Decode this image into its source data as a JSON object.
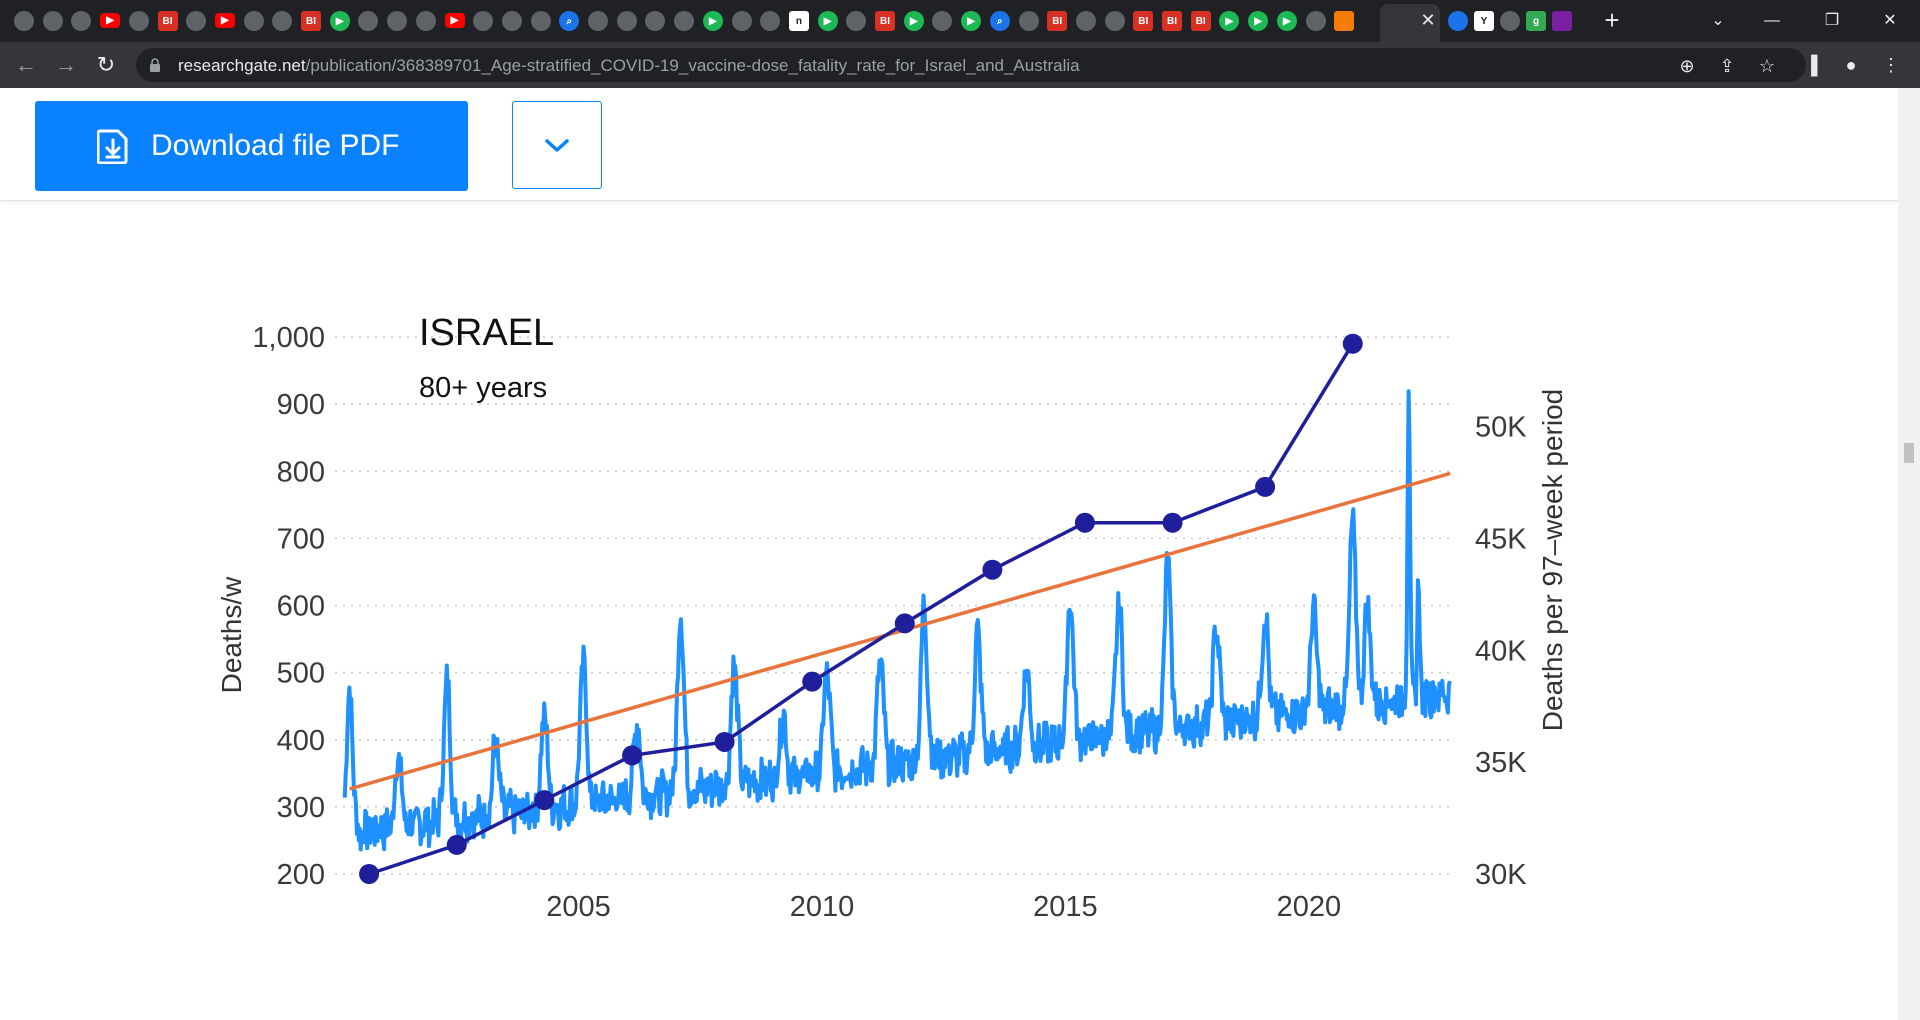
{
  "browser": {
    "url_host": "researchgate.net",
    "url_path": "/publication/368389701_Age-stratified_COVID-19_vaccine-dose_fatality_rate_for_Israel_and_Australia",
    "tab_icons": [
      "globe-icon",
      "globe-icon",
      "globe-icon",
      "youtube-icon",
      "globe-icon",
      "bi-icon",
      "globe-icon",
      "youtube-icon",
      "globe-icon",
      "globe-icon",
      "bi-icon",
      "play-icon",
      "globe-icon",
      "globe-icon",
      "globe-icon",
      "youtube-icon",
      "globe-icon",
      "globe-icon",
      "globe-icon",
      "search-icon",
      "globe-icon",
      "globe-icon",
      "globe-icon",
      "globe-icon",
      "play-icon",
      "globe-icon",
      "globe-icon",
      "n-icon",
      "play-icon",
      "globe-icon",
      "bi-icon",
      "play-icon",
      "globe-icon",
      "play-icon",
      "search-icon",
      "globe-icon",
      "bi-icon",
      "globe-icon",
      "globe-icon",
      "bi-icon",
      "bi-icon",
      "bi-icon",
      "play-icon",
      "play-icon",
      "play-icon",
      "globe-icon",
      "substack-icon"
    ],
    "right_tab_icons": [
      "twitter-icon",
      "y-icon",
      "globe-icon",
      "g-icon",
      "mail-icon"
    ],
    "close_glyph": "✕",
    "new_tab_glyph": "+"
  },
  "download": {
    "label": "Download file PDF"
  },
  "chart_data": {
    "type": "line",
    "title": "ISRAEL",
    "subtitle": "80+ years",
    "ylabel": "Deaths/w",
    "y2label": "Deaths per 97–week period",
    "ylim": [
      200,
      1000
    ],
    "y2lim": [
      30000,
      54000
    ],
    "xlim": [
      2000.2,
      2023.0
    ],
    "y_ticks": [
      200,
      300,
      400,
      500,
      600,
      700,
      800,
      900,
      1000
    ],
    "y_tick_labels": [
      "200",
      "300",
      "400",
      "500",
      "600",
      "700",
      "800",
      "900",
      "1,000"
    ],
    "y2_ticks": [
      30000,
      35000,
      40000,
      45000,
      50000
    ],
    "y2_tick_labels": [
      "30K",
      "35K",
      "40K",
      "45K",
      "50K"
    ],
    "x_ticks": [
      2005,
      2010,
      2015,
      2020
    ],
    "x_tick_labels": [
      "2005",
      "2010",
      "2015",
      "2020"
    ],
    "series": [
      {
        "name": "Deaths per 97-week period",
        "axis": "right",
        "color": "#1f1f9c",
        "x": [
          2000.7,
          2002.5,
          2004.3,
          2006.1,
          2008.0,
          2009.8,
          2011.7,
          2013.5,
          2015.4,
          2017.2,
          2019.1,
          2020.9
        ],
        "y": [
          30000,
          31300,
          33300,
          35300,
          35900,
          38600,
          41200,
          43600,
          45700,
          45700,
          47300,
          53700
        ]
      },
      {
        "name": "Linear trend",
        "axis": "right",
        "color": "#e8743b",
        "x": [
          2000.3,
          2022.9
        ],
        "y": [
          33800,
          47900
        ]
      },
      {
        "name": "Weekly deaths",
        "axis": "left",
        "color": "#1e90ff",
        "base_start": 285,
        "base_end": 495,
        "troughs": [
          [
            2000.2,
            260
          ],
          [
            2022.9,
            455
          ]
        ],
        "winter_peaks": [
          [
            2000.3,
            470
          ],
          [
            2001.3,
            380
          ],
          [
            2002.3,
            490
          ],
          [
            2003.3,
            400
          ],
          [
            2004.3,
            440
          ],
          [
            2005.1,
            520
          ],
          [
            2006.2,
            430
          ],
          [
            2007.1,
            595
          ],
          [
            2008.2,
            515
          ],
          [
            2009.2,
            440
          ],
          [
            2010.1,
            505
          ],
          [
            2011.2,
            520
          ],
          [
            2012.1,
            600
          ],
          [
            2013.2,
            560
          ],
          [
            2014.2,
            510
          ],
          [
            2015.1,
            610
          ],
          [
            2016.1,
            605
          ],
          [
            2017.1,
            665
          ],
          [
            2018.1,
            570
          ],
          [
            2019.1,
            590
          ],
          [
            2020.1,
            595
          ],
          [
            2020.9,
            725
          ],
          [
            2021.2,
            600
          ],
          [
            2022.05,
            950
          ],
          [
            2022.25,
            640
          ]
        ]
      }
    ]
  }
}
